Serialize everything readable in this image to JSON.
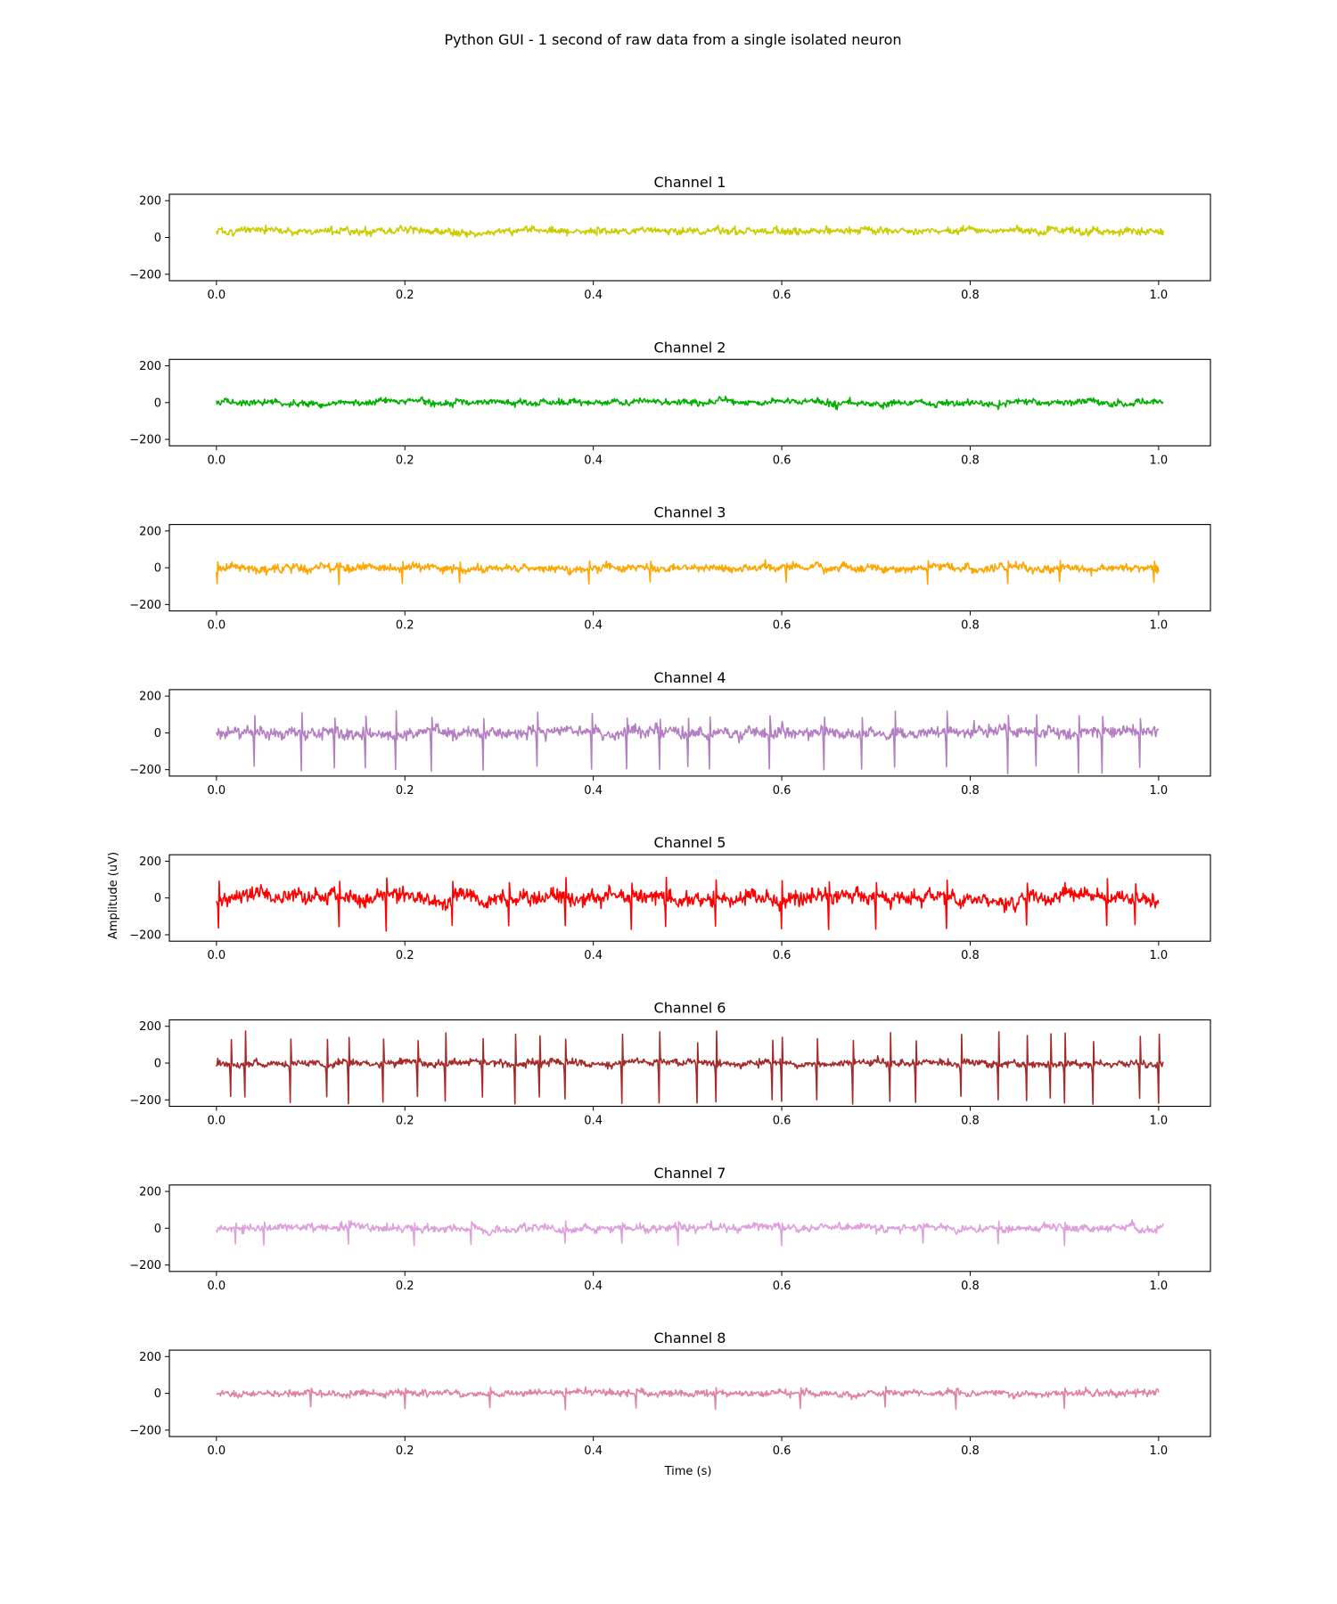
{
  "figure": {
    "suptitle": "Python GUI - 1 second of raw data from a single isolated neuron",
    "xlabel": "Time (s)",
    "ylabel": "Amplitude (uV)"
  },
  "chart_data": [
    {
      "type": "line",
      "title": "Channel 1",
      "color": "#cccc00",
      "xlim": [
        -0.05,
        1.055
      ],
      "ylim": [
        -235,
        235
      ],
      "xticks": [
        "0.0",
        "0.2",
        "0.4",
        "0.6",
        "0.8",
        "1.0"
      ],
      "yticks": [
        "200",
        "0",
        "−200"
      ],
      "duration_s": 1.005,
      "baseline_uv": 35,
      "noise_uv": 14,
      "spike_times_s": [],
      "spike_peak_uv": 0,
      "spike_pos_uv": 0
    },
    {
      "type": "line",
      "title": "Channel 2",
      "color": "#00b000",
      "xlim": [
        -0.05,
        1.055
      ],
      "ylim": [
        -235,
        235
      ],
      "xticks": [
        "0.0",
        "0.2",
        "0.4",
        "0.6",
        "0.8",
        "1.0"
      ],
      "yticks": [
        "200",
        "0",
        "−200"
      ],
      "duration_s": 1.005,
      "baseline_uv": 0,
      "noise_uv": 13,
      "spike_times_s": [],
      "spike_peak_uv": 0,
      "spike_pos_uv": 0
    },
    {
      "type": "line",
      "title": "Channel 3",
      "color": "#ffa500",
      "xlim": [
        -0.05,
        1.055
      ],
      "ylim": [
        -235,
        235
      ],
      "xticks": [
        "0.0",
        "0.2",
        "0.4",
        "0.6",
        "0.8",
        "1.0"
      ],
      "yticks": [
        "200",
        "0",
        "−200"
      ],
      "duration_s": 1.0,
      "baseline_uv": 0,
      "noise_uv": 16,
      "spike_times_s": [
        0.001,
        0.13,
        0.197,
        0.258,
        0.395,
        0.46,
        0.605,
        0.755,
        0.84,
        0.895,
        0.995
      ],
      "spike_peak_uv": -95,
      "spike_pos_uv": 40
    },
    {
      "type": "line",
      "title": "Channel 4",
      "color": "#b37fc2",
      "xlim": [
        -0.05,
        1.055
      ],
      "ylim": [
        -235,
        235
      ],
      "xticks": [
        "0.0",
        "0.2",
        "0.4",
        "0.6",
        "0.8",
        "1.0"
      ],
      "yticks": [
        "200",
        "0",
        "−200"
      ],
      "duration_s": 1.0,
      "baseline_uv": 0,
      "noise_uv": 24,
      "spike_times_s": [
        0.04,
        0.09,
        0.125,
        0.158,
        0.19,
        0.228,
        0.283,
        0.34,
        0.398,
        0.435,
        0.47,
        0.5,
        0.523,
        0.587,
        0.645,
        0.685,
        0.72,
        0.775,
        0.84,
        0.87,
        0.915,
        0.94,
        0.98
      ],
      "spike_peak_uv": -225,
      "spike_pos_uv": 120
    },
    {
      "type": "line",
      "title": "Channel 5",
      "color": "#ff0000",
      "xlim": [
        -0.05,
        1.055
      ],
      "ylim": [
        -235,
        235
      ],
      "xticks": [
        "0.0",
        "0.2",
        "0.4",
        "0.6",
        "0.8",
        "1.0"
      ],
      "yticks": [
        "200",
        "0",
        "−200"
      ],
      "duration_s": 1.0,
      "baseline_uv": 0,
      "noise_uv": 30,
      "spike_times_s": [
        0.002,
        0.13,
        0.18,
        0.25,
        0.31,
        0.37,
        0.44,
        0.477,
        0.53,
        0.6,
        0.65,
        0.7,
        0.775,
        0.86,
        0.945,
        0.975
      ],
      "spike_peak_uv": -180,
      "spike_pos_uv": 120
    },
    {
      "type": "line",
      "title": "Channel 6",
      "color": "#a52a2a",
      "xlim": [
        -0.05,
        1.055
      ],
      "ylim": [
        -235,
        235
      ],
      "xticks": [
        "0.0",
        "0.2",
        "0.4",
        "0.6",
        "0.8",
        "1.0"
      ],
      "yticks": [
        "200",
        "0",
        "−200"
      ],
      "duration_s": 1.005,
      "baseline_uv": 0,
      "noise_uv": 14,
      "spike_times_s": [
        0.015,
        0.03,
        0.078,
        0.117,
        0.14,
        0.177,
        0.213,
        0.243,
        0.282,
        0.317,
        0.343,
        0.37,
        0.43,
        0.47,
        0.51,
        0.53,
        0.59,
        0.6,
        0.637,
        0.675,
        0.715,
        0.742,
        0.79,
        0.83,
        0.86,
        0.885,
        0.9,
        0.93,
        0.98,
        1.0
      ],
      "spike_peak_uv": -225,
      "spike_pos_uv": 175
    },
    {
      "type": "line",
      "title": "Channel 7",
      "color": "#dda0dd",
      "xlim": [
        -0.05,
        1.055
      ],
      "ylim": [
        -235,
        235
      ],
      "xticks": [
        "0.0",
        "0.2",
        "0.4",
        "0.6",
        "0.8",
        "1.0"
      ],
      "yticks": [
        "200",
        "0",
        "−200"
      ],
      "duration_s": 1.005,
      "baseline_uv": 0,
      "noise_uv": 15,
      "spike_times_s": [
        0.02,
        0.05,
        0.14,
        0.21,
        0.27,
        0.37,
        0.43,
        0.49,
        0.6,
        0.75,
        0.83,
        0.9
      ],
      "spike_peak_uv": -95,
      "spike_pos_uv": 40
    },
    {
      "type": "line",
      "title": "Channel 8",
      "color": "#e082a6",
      "xlim": [
        -0.05,
        1.055
      ],
      "ylim": [
        -235,
        235
      ],
      "xticks": [
        "0.0",
        "0.2",
        "0.4",
        "0.6",
        "0.8",
        "1.0"
      ],
      "yticks": [
        "200",
        "0",
        "−200"
      ],
      "duration_s": 1.0,
      "baseline_uv": 0,
      "noise_uv": 13,
      "spike_times_s": [
        0.1,
        0.2,
        0.29,
        0.37,
        0.445,
        0.53,
        0.62,
        0.71,
        0.785,
        0.9
      ],
      "spike_peak_uv": -90,
      "spike_pos_uv": 40
    }
  ]
}
